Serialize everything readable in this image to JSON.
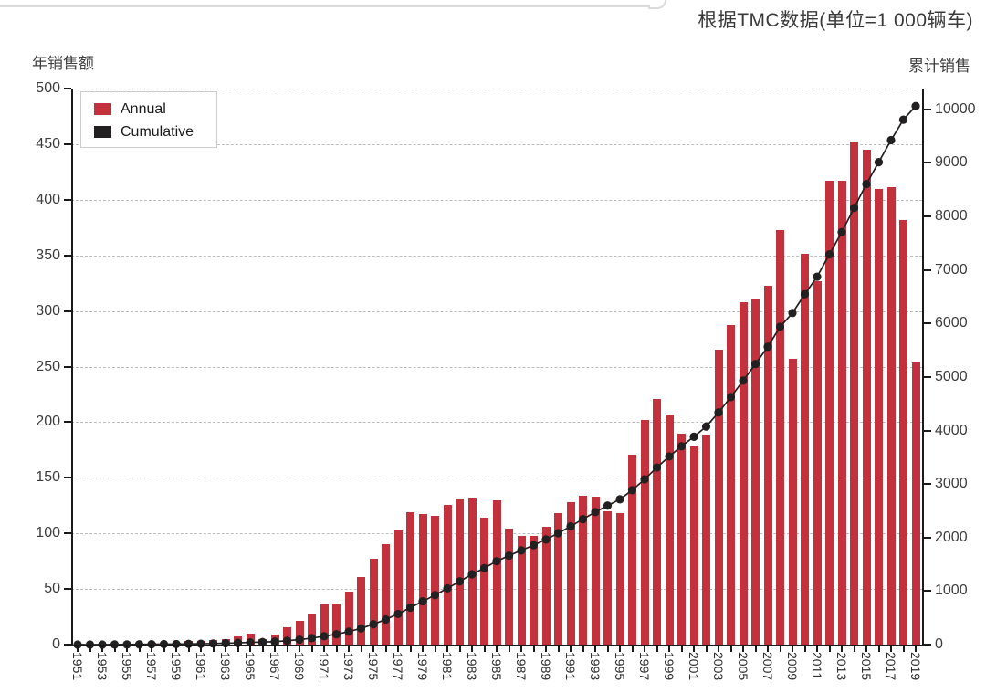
{
  "header": {
    "title": "根据TMC数据(单位=1 000辆车)"
  },
  "axes": {
    "left_title": "年销售额",
    "right_title": "累计销售",
    "left_ticks": [
      0,
      50,
      100,
      150,
      200,
      250,
      300,
      350,
      400,
      450,
      500
    ],
    "right_ticks": [
      0,
      1000,
      2000,
      3000,
      4000,
      5000,
      6000,
      7000,
      8000,
      9000,
      10000
    ],
    "left_range": [
      0,
      500
    ],
    "right_range": [
      0,
      10390
    ],
    "x_label_every_n_years": 2
  },
  "legend": {
    "items": [
      {
        "label": "Annual",
        "color": "#c2313c"
      },
      {
        "label": "Cumulative",
        "color": "#222021"
      }
    ]
  },
  "chart_data": {
    "type": "bar+line combo",
    "title": "根据TMC数据(单位=1 000辆车)",
    "xlabel": "",
    "ylabel_left": "年销售额",
    "ylabel_right": "累计销售",
    "x_years": [
      1951,
      1952,
      1953,
      1954,
      1955,
      1956,
      1957,
      1958,
      1959,
      1960,
      1961,
      1962,
      1963,
      1964,
      1965,
      1966,
      1967,
      1968,
      1969,
      1970,
      1971,
      1972,
      1973,
      1974,
      1975,
      1976,
      1977,
      1978,
      1979,
      1980,
      1981,
      1982,
      1983,
      1984,
      1985,
      1986,
      1987,
      1988,
      1989,
      1990,
      1991,
      1992,
      1993,
      1994,
      1995,
      1996,
      1997,
      1998,
      1999,
      2000,
      2001,
      2002,
      2003,
      2004,
      2005,
      2006,
      2007,
      2008,
      2009,
      2010,
      2011,
      2012,
      2013,
      2014,
      2015,
      2016,
      2017,
      2018,
      2019
    ],
    "x_tick_labels": [
      "1951",
      "1953",
      "1955",
      "1957",
      "1959",
      "1961",
      "1963",
      "1965",
      "1967",
      "1969",
      "1971",
      "1973",
      "1975",
      "1977",
      "1979",
      "1981",
      "1983",
      "1985",
      "1987",
      "1989",
      "1991",
      "1993",
      "1995",
      "1997",
      "1999",
      "2001",
      "2003",
      "2005",
      "2007",
      "2009",
      "2011",
      "2013",
      "2015",
      "2017",
      "2019"
    ],
    "series": [
      {
        "name": "Annual",
        "type": "bar",
        "axis": "left",
        "color": "#c2313c",
        "values": [
          0.2,
          0.3,
          0.5,
          0.8,
          1,
          1.2,
          1.5,
          2,
          2,
          3,
          3,
          4,
          5,
          7,
          10,
          5,
          9,
          16,
          21,
          28,
          36,
          37,
          48,
          61,
          77,
          90,
          103,
          119,
          117,
          116,
          126,
          131,
          132,
          114,
          130,
          104,
          98,
          98,
          106,
          118,
          128,
          134,
          133,
          120,
          118,
          171,
          202,
          221,
          207,
          190,
          178,
          189,
          265,
          287,
          308,
          310,
          323,
          373,
          257,
          351,
          327,
          417,
          417,
          452,
          445,
          410,
          411,
          382,
          254
        ]
      },
      {
        "name": "Cumulative",
        "type": "line",
        "axis": "right",
        "color": "#222021",
        "values": [
          0,
          1,
          1,
          2,
          3,
          4,
          6,
          8,
          10,
          13,
          16,
          20,
          25,
          32,
          42,
          47,
          56,
          72,
          93,
          121,
          157,
          194,
          242,
          303,
          380,
          470,
          573,
          692,
          809,
          925,
          1051,
          1182,
          1314,
          1428,
          1558,
          1662,
          1760,
          1858,
          1964,
          2082,
          2210,
          2344,
          2477,
          2597,
          2715,
          2886,
          3088,
          3309,
          3516,
          3706,
          3884,
          4073,
          4338,
          4625,
          4933,
          5243,
          5566,
          5939,
          6196,
          6547,
          6874,
          7291,
          7708,
          8160,
          8605,
          9015,
          9426,
          9808,
          10062
        ]
      }
    ],
    "left_axis_range": [
      0,
      500
    ],
    "right_axis_range": [
      0,
      10390
    ],
    "grid": "horizontal dashed at every left tick",
    "legend_position": "top-left inside plot"
  },
  "style": {
    "bar_color": "#c2313c",
    "line_color": "#222021",
    "dot_color": "#222021",
    "axis_color": "#1a1a1a",
    "grid_color": "#bdbdbd",
    "text_color": "#3c3c3c",
    "background": "#ffffff"
  }
}
